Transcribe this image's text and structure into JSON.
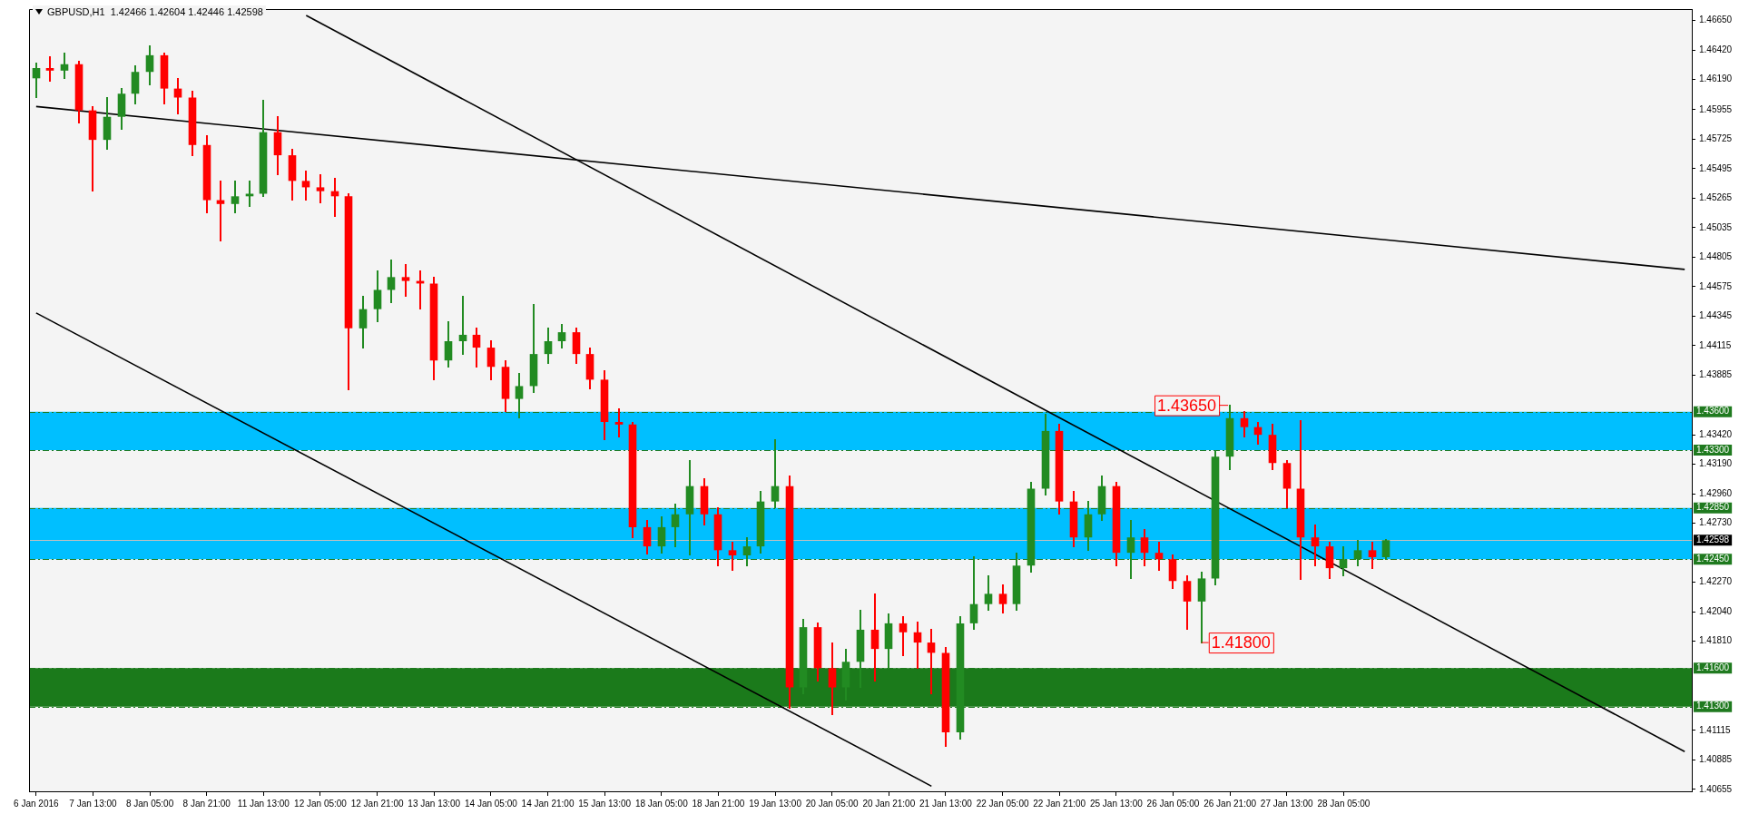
{
  "chart_data": {
    "type": "candlestick",
    "title": "GBPUSD,H1  1.42466 1.42604 1.42446 1.42598",
    "categories": [
      "6 Jan 2016",
      null,
      null,
      null,
      "7 Jan 13:00",
      null,
      null,
      null,
      "8 Jan 05:00",
      null,
      null,
      null,
      "8 Jan 21:00",
      null,
      null,
      null,
      "11 Jan 13:00",
      null,
      null,
      null,
      "12 Jan 05:00",
      null,
      null,
      null,
      "12 Jan 21:00",
      null,
      null,
      null,
      "13 Jan 13:00",
      null,
      null,
      null,
      "14 Jan 05:00",
      null,
      null,
      null,
      "14 Jan 21:00",
      null,
      null,
      null,
      "15 Jan 13:00",
      null,
      null,
      null,
      "18 Jan 05:00",
      null,
      null,
      null,
      "18 Jan 21:00",
      null,
      null,
      null,
      "19 Jan 13:00",
      null,
      null,
      null,
      "20 Jan 05:00",
      null,
      null,
      null,
      "20 Jan 21:00",
      null,
      null,
      null,
      "21 Jan 13:00",
      null,
      null,
      null,
      "22 Jan 05:00",
      null,
      null,
      null,
      "22 Jan 21:00",
      null,
      null,
      null,
      "25 Jan 13:00",
      null,
      null,
      null,
      "26 Jan 05:00",
      null,
      null,
      null,
      "26 Jan 21:00",
      null,
      null,
      null,
      "27 Jan 13:00",
      null,
      null,
      null,
      "28 Jan 05:00",
      null,
      null,
      null,
      null,
      null,
      null,
      null,
      null,
      null,
      null,
      null,
      null,
      null,
      null,
      null,
      null,
      null,
      null,
      null,
      null,
      null,
      null,
      null,
      null
    ],
    "ohlc": [
      [
        1.462,
        1.4632,
        1.4605,
        1.4628
      ],
      [
        1.4628,
        1.4637,
        1.4618,
        1.4626
      ],
      [
        1.4626,
        1.464,
        1.462,
        1.4631
      ],
      [
        1.4631,
        1.4633,
        1.4585,
        1.4595
      ],
      [
        1.4595,
        1.4598,
        1.4532,
        1.4572
      ],
      [
        1.4572,
        1.4605,
        1.4565,
        1.459
      ],
      [
        1.459,
        1.4612,
        1.458,
        1.4608
      ],
      [
        1.4608,
        1.463,
        1.46,
        1.4625
      ],
      [
        1.4625,
        1.4645,
        1.4615,
        1.4638
      ],
      [
        1.4638,
        1.464,
        1.46,
        1.4612
      ],
      [
        1.4612,
        1.462,
        1.4592,
        1.4605
      ],
      [
        1.4605,
        1.461,
        1.456,
        1.4568
      ],
      [
        1.4568,
        1.4575,
        1.4515,
        1.4525
      ],
      [
        1.4525,
        1.454,
        1.4493,
        1.4522
      ],
      [
        1.4522,
        1.454,
        1.4515,
        1.4528
      ],
      [
        1.4528,
        1.454,
        1.452,
        1.453
      ],
      [
        1.453,
        1.4603,
        1.4528,
        1.4578
      ],
      [
        1.4578,
        1.459,
        1.4545,
        1.456
      ],
      [
        1.456,
        1.4565,
        1.4525,
        1.454
      ],
      [
        1.454,
        1.4548,
        1.4525,
        1.4535
      ],
      [
        1.4535,
        1.4545,
        1.4523,
        1.4532
      ],
      [
        1.4532,
        1.4542,
        1.4512,
        1.4528
      ],
      [
        1.4528,
        1.453,
        1.4377,
        1.4425
      ],
      [
        1.4425,
        1.445,
        1.441,
        1.444
      ],
      [
        1.444,
        1.447,
        1.443,
        1.4455
      ],
      [
        1.4455,
        1.4478,
        1.4445,
        1.4465
      ],
      [
        1.4465,
        1.4475,
        1.445,
        1.4462
      ],
      [
        1.4462,
        1.447,
        1.444,
        1.446
      ],
      [
        1.446,
        1.4465,
        1.4385,
        1.44
      ],
      [
        1.44,
        1.443,
        1.4395,
        1.4415
      ],
      [
        1.4415,
        1.445,
        1.4405,
        1.442
      ],
      [
        1.442,
        1.4425,
        1.4395,
        1.441
      ],
      [
        1.441,
        1.4415,
        1.4385,
        1.4395
      ],
      [
        1.4395,
        1.44,
        1.436,
        1.437
      ],
      [
        1.437,
        1.439,
        1.4355,
        1.438
      ],
      [
        1.438,
        1.4444,
        1.4375,
        1.4405
      ],
      [
        1.4405,
        1.4425,
        1.4398,
        1.4415
      ],
      [
        1.4415,
        1.4428,
        1.441,
        1.4422
      ],
      [
        1.4422,
        1.4425,
        1.4398,
        1.4405
      ],
      [
        1.4405,
        1.441,
        1.4378,
        1.4385
      ],
      [
        1.4385,
        1.4392,
        1.4338,
        1.4352
      ],
      [
        1.4352,
        1.4362,
        1.434,
        1.435
      ],
      [
        1.435,
        1.4352,
        1.4262,
        1.427
      ],
      [
        1.427,
        1.4275,
        1.4249,
        1.4255
      ],
      [
        1.4255,
        1.4278,
        1.425,
        1.427
      ],
      [
        1.427,
        1.4288,
        1.4255,
        1.428
      ],
      [
        1.428,
        1.4322,
        1.4248,
        1.4302
      ],
      [
        1.4302,
        1.4308,
        1.4272,
        1.428
      ],
      [
        1.428,
        1.4285,
        1.424,
        1.4252
      ],
      [
        1.4252,
        1.4258,
        1.4236,
        1.4248
      ],
      [
        1.4248,
        1.4262,
        1.424,
        1.4255
      ],
      [
        1.4255,
        1.4298,
        1.425,
        1.429
      ],
      [
        1.429,
        1.4338,
        1.4285,
        1.4302
      ],
      [
        1.4302,
        1.431,
        1.4129,
        1.4145
      ],
      [
        1.4145,
        1.4198,
        1.414,
        1.4192
      ],
      [
        1.4192,
        1.4195,
        1.415,
        1.416
      ],
      [
        1.416,
        1.418,
        1.4124,
        1.4145
      ],
      [
        1.4145,
        1.4175,
        1.4135,
        1.4165
      ],
      [
        1.4165,
        1.4205,
        1.4145,
        1.419
      ],
      [
        1.419,
        1.4218,
        1.415,
        1.4175
      ],
      [
        1.4175,
        1.4202,
        1.416,
        1.4195
      ],
      [
        1.4195,
        1.42,
        1.417,
        1.4188
      ],
      [
        1.4188,
        1.4196,
        1.416,
        1.418
      ],
      [
        1.418,
        1.419,
        1.414,
        1.4172
      ],
      [
        1.4172,
        1.4176,
        1.4099,
        1.411
      ],
      [
        1.411,
        1.42,
        1.4105,
        1.4195
      ],
      [
        1.4195,
        1.4247,
        1.419,
        1.421
      ],
      [
        1.421,
        1.4232,
        1.4205,
        1.4218
      ],
      [
        1.4218,
        1.4225,
        1.4203,
        1.421
      ],
      [
        1.421,
        1.425,
        1.4205,
        1.424
      ],
      [
        1.424,
        1.4305,
        1.4235,
        1.43
      ],
      [
        1.43,
        1.4358,
        1.4295,
        1.4345
      ],
      [
        1.4345,
        1.435,
        1.428,
        1.429
      ],
      [
        1.429,
        1.4298,
        1.4255,
        1.4262
      ],
      [
        1.4262,
        1.429,
        1.4252,
        1.428
      ],
      [
        1.428,
        1.431,
        1.4275,
        1.4302
      ],
      [
        1.4302,
        1.4305,
        1.424,
        1.425
      ],
      [
        1.425,
        1.4275,
        1.423,
        1.4262
      ],
      [
        1.4262,
        1.4268,
        1.424,
        1.425
      ],
      [
        1.425,
        1.4258,
        1.4236,
        1.4245
      ],
      [
        1.4245,
        1.4248,
        1.4222,
        1.4228
      ],
      [
        1.4228,
        1.4232,
        1.419,
        1.4212
      ],
      [
        1.4212,
        1.4235,
        1.418,
        1.423
      ],
      [
        1.423,
        1.433,
        1.4225,
        1.4325
      ],
      [
        1.4325,
        1.4365,
        1.4315,
        1.4355
      ],
      [
        1.4355,
        1.436,
        1.434,
        1.4348
      ],
      [
        1.4348,
        1.4352,
        1.4335,
        1.4342
      ],
      [
        1.4342,
        1.435,
        1.4315,
        1.432
      ],
      [
        1.432,
        1.4322,
        1.4285,
        1.43
      ],
      [
        1.43,
        1.4353,
        1.4229,
        1.4262
      ],
      [
        1.4262,
        1.4272,
        1.424,
        1.4255
      ],
      [
        1.4255,
        1.4258,
        1.423,
        1.4238
      ],
      [
        1.4238,
        1.4255,
        1.4232,
        1.4245
      ],
      [
        1.4245,
        1.426,
        1.424,
        1.4252
      ],
      [
        1.4252,
        1.4258,
        1.4238,
        1.42466
      ],
      [
        1.42466,
        1.42604,
        1.42446,
        1.42598
      ],
      null,
      null,
      null,
      null,
      null,
      null,
      null,
      null,
      null,
      null,
      null,
      null,
      null,
      null,
      null,
      null,
      null,
      null,
      null,
      null,
      null
    ],
    "colors": [
      "#228b22",
      "#ff0000",
      "#228b22",
      "#ff0000",
      "#ff0000",
      "#228b22",
      "#228b22",
      "#228b22",
      "#228b22",
      "#ff0000",
      "#ff0000",
      "#ff0000",
      "#ff0000",
      "#ff0000",
      "#228b22",
      "#228b22",
      "#228b22",
      "#ff0000",
      "#ff0000",
      "#ff0000",
      "#ff0000",
      "#ff0000",
      "#ff0000",
      "#228b22",
      "#228b22",
      "#228b22",
      "#ff0000",
      "#ff0000",
      "#ff0000",
      "#228b22",
      "#228b22",
      "#ff0000",
      "#ff0000",
      "#ff0000",
      "#228b22",
      "#228b22",
      "#228b22",
      "#228b22",
      "#ff0000",
      "#ff0000",
      "#ff0000",
      "#ff0000",
      "#ff0000",
      "#ff0000",
      "#228b22",
      "#228b22",
      "#228b22",
      "#ff0000",
      "#ff0000",
      "#ff0000",
      "#228b22",
      "#228b22",
      "#228b22",
      "#ff0000",
      "#228b22",
      "#ff0000",
      "#ff0000",
      "#228b22",
      "#228b22",
      "#ff0000",
      "#228b22",
      "#ff0000",
      "#ff0000",
      "#ff0000",
      "#ff0000",
      "#228b22",
      "#228b22",
      "#228b22",
      "#ff0000",
      "#228b22",
      "#228b22",
      "#228b22",
      "#ff0000",
      "#ff0000",
      "#228b22",
      "#228b22",
      "#ff0000",
      "#228b22",
      "#ff0000",
      "#ff0000",
      "#ff0000",
      "#ff0000",
      "#228b22",
      "#228b22",
      "#228b22",
      "#ff0000",
      "#ff0000",
      "#ff0000",
      "#ff0000",
      "#ff0000",
      "#ff0000",
      "#ff0000",
      "#228b22",
      "#228b22",
      "#ff0000",
      "#228b22",
      null,
      null,
      null,
      null,
      null,
      null,
      null,
      null,
      null,
      null,
      null,
      null,
      null,
      null,
      null,
      null,
      null,
      null,
      null,
      null,
      null
    ],
    "series": [
      {
        "type": "line",
        "color": "#000000",
        "values": [
          null,
          null,
          null,
          null,
          null,
          null,
          null,
          null,
          null,
          null,
          null,
          null,
          null,
          null,
          null,
          null,
          null,
          null,
          null,
          1.4669,
          null,
          null,
          null,
          null,
          null,
          null,
          null,
          null,
          null,
          null,
          null,
          null,
          null,
          null,
          null,
          null,
          null,
          null,
          null,
          null,
          null,
          null,
          null,
          null,
          null,
          null,
          null,
          null,
          null,
          null,
          null,
          null,
          null,
          null,
          null,
          null,
          null,
          null,
          null,
          null,
          null,
          null,
          null,
          null,
          null,
          null,
          null,
          null,
          null,
          null,
          null,
          null,
          null,
          null,
          null,
          null,
          null,
          null,
          null,
          null,
          null,
          null,
          null,
          null,
          null,
          null,
          null,
          null,
          null,
          null,
          null,
          null,
          null,
          null,
          null,
          null,
          null,
          null,
          null,
          null,
          null,
          null,
          null,
          null,
          null,
          null,
          null,
          null,
          null,
          null,
          null,
          null,
          null,
          null,
          null,
          null,
          1.4095
        ]
      },
      {
        "type": "line",
        "color": "#000000",
        "values": [
          1.4598,
          null,
          null,
          null,
          null,
          null,
          null,
          null,
          null,
          null,
          null,
          null,
          null,
          null,
          null,
          null,
          null,
          null,
          null,
          null,
          null,
          null,
          null,
          null,
          null,
          null,
          null,
          null,
          null,
          null,
          null,
          null,
          null,
          null,
          null,
          null,
          null,
          null,
          null,
          null,
          null,
          null,
          null,
          null,
          null,
          null,
          null,
          null,
          null,
          null,
          null,
          null,
          null,
          null,
          null,
          null,
          null,
          null,
          null,
          null,
          null,
          null,
          null,
          null,
          null,
          null,
          null,
          null,
          null,
          null,
          null,
          null,
          null,
          null,
          null,
          null,
          null,
          null,
          null,
          null,
          null,
          null,
          null,
          null,
          null,
          null,
          null,
          null,
          null,
          null,
          null,
          null,
          null,
          null,
          null,
          null,
          null,
          null,
          null,
          null,
          null,
          null,
          null,
          null,
          null,
          null,
          null,
          null,
          null,
          null,
          null,
          null,
          null,
          null,
          null,
          null,
          1.4471
        ]
      },
      {
        "type": "line",
        "color": "#000000",
        "values": [
          1.4437,
          null,
          null,
          null,
          null,
          null,
          null,
          null,
          null,
          null,
          null,
          null,
          null,
          null,
          null,
          null,
          null,
          null,
          null,
          null,
          null,
          null,
          null,
          null,
          null,
          null,
          null,
          null,
          null,
          null,
          null,
          null,
          null,
          null,
          null,
          null,
          null,
          null,
          null,
          null,
          null,
          null,
          null,
          null,
          null,
          null,
          null,
          null,
          null,
          null,
          null,
          null,
          null,
          null,
          null,
          null,
          null,
          null,
          null,
          null,
          null,
          null,
          null,
          1.4068,
          null,
          null,
          null,
          null,
          null,
          null,
          null,
          null,
          null,
          null,
          null,
          null,
          null,
          null,
          null,
          null,
          null,
          null,
          null,
          null,
          null,
          null,
          null,
          null,
          null,
          null,
          null,
          null,
          null,
          null,
          null,
          null,
          null,
          null,
          null,
          null,
          null,
          null,
          null,
          null,
          null,
          null,
          null,
          null,
          null,
          null,
          null,
          null,
          null,
          null,
          null,
          null,
          null
        ]
      }
    ],
    "ylim": [
      1.4064,
      1.4674
    ],
    "yticks": [
      {
        "value": 1.40655,
        "label": "1.40655"
      },
      {
        "value": 1.40885,
        "label": "1.40885"
      },
      {
        "value": 1.41115,
        "label": "1.41115"
      },
      {
        "value": 1.4181,
        "label": "1.41810"
      },
      {
        "value": 1.4204,
        "label": "1.42040"
      },
      {
        "value": 1.4227,
        "label": "1.42270"
      },
      {
        "value": 1.4273,
        "label": "1.42730"
      },
      {
        "value": 1.4296,
        "label": "1.42960"
      },
      {
        "value": 1.4319,
        "label": "1.43190"
      },
      {
        "value": 1.4342,
        "label": "1.43420"
      },
      {
        "value": 1.43885,
        "label": "1.43885"
      },
      {
        "value": 1.44115,
        "label": "1.44115"
      },
      {
        "value": 1.44345,
        "label": "1.44345"
      },
      {
        "value": 1.44575,
        "label": "1.44575"
      },
      {
        "value": 1.44805,
        "label": "1.44805"
      },
      {
        "value": 1.45035,
        "label": "1.45035"
      },
      {
        "value": 1.45265,
        "label": "1.45265"
      },
      {
        "value": 1.45495,
        "label": "1.45495"
      },
      {
        "value": 1.45725,
        "label": "1.45725"
      },
      {
        "value": 1.45955,
        "label": "1.45955"
      },
      {
        "value": 1.4619,
        "label": "1.46190"
      },
      {
        "value": 1.4642,
        "label": "1.46420"
      },
      {
        "value": 1.4665,
        "label": "1.46650"
      }
    ],
    "bands": [
      {
        "axis": "y",
        "from": 1.433,
        "to": 1.436,
        "color": "#00bfff"
      },
      {
        "axis": "y",
        "from": 1.4245,
        "to": 1.4285,
        "color": "#00bfff"
      },
      {
        "axis": "y",
        "from": 1.413,
        "to": 1.416,
        "color": "#1b7a1b"
      }
    ],
    "ref_lines": [
      {
        "axis": "y",
        "value": 1.436,
        "label": "1.43600",
        "color": "#1f7a1f",
        "line_style": "dashed"
      },
      {
        "axis": "y",
        "value": 1.433,
        "label": "1.43300",
        "color": "#1f7a1f",
        "line_style": "dashed"
      },
      {
        "axis": "y",
        "value": 1.4285,
        "label": "1.42850",
        "color": "#1f7a1f",
        "line_style": "dashed"
      },
      {
        "axis": "y",
        "value": 1.4245,
        "label": "1.42450",
        "color": "#1f7a1f",
        "line_style": "dashed"
      },
      {
        "axis": "y",
        "value": 1.416,
        "label": "1.41600",
        "color": "#1f7a1f",
        "line_style": "dashed"
      },
      {
        "axis": "y",
        "value": 1.413,
        "label": "1.41300",
        "color": "#1f7a1f",
        "line_style": "dashed"
      },
      {
        "axis": "y",
        "value": 1.42598,
        "label": "1.42598",
        "color": "#c0c0c0",
        "line_style": "solid"
      }
    ],
    "annotations": [
      "1.43650",
      "1.41800"
    ]
  }
}
